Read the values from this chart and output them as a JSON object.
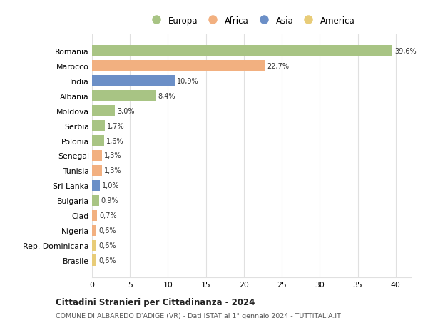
{
  "categories": [
    "Romania",
    "Marocco",
    "India",
    "Albania",
    "Moldova",
    "Serbia",
    "Polonia",
    "Senegal",
    "Tunisia",
    "Sri Lanka",
    "Bulgaria",
    "Ciad",
    "Nigeria",
    "Rep. Dominicana",
    "Brasile"
  ],
  "values": [
    39.6,
    22.7,
    10.9,
    8.4,
    3.0,
    1.7,
    1.6,
    1.3,
    1.3,
    1.0,
    0.9,
    0.7,
    0.6,
    0.6,
    0.6
  ],
  "labels": [
    "39,6%",
    "22,7%",
    "10,9%",
    "8,4%",
    "3,0%",
    "1,7%",
    "1,6%",
    "1,3%",
    "1,3%",
    "1,0%",
    "0,9%",
    "0,7%",
    "0,6%",
    "0,6%",
    "0,6%"
  ],
  "colors": [
    "#a8c484",
    "#f2b080",
    "#6b8fc7",
    "#a8c484",
    "#a8c484",
    "#a8c484",
    "#a8c484",
    "#f2b080",
    "#f2b080",
    "#6b8fc7",
    "#a8c484",
    "#f2b080",
    "#f2b080",
    "#e8cc78",
    "#e8cc78"
  ],
  "legend_labels": [
    "Europa",
    "Africa",
    "Asia",
    "America"
  ],
  "legend_colors": [
    "#a8c484",
    "#f2b080",
    "#6b8fc7",
    "#e8cc78"
  ],
  "title1": "Cittadini Stranieri per Cittadinanza - 2024",
  "title2": "COMUNE DI ALBAREDO D'ADIGE (VR) - Dati ISTAT al 1° gennaio 2024 - TUTTITALIA.IT",
  "xlim": [
    0,
    42
  ],
  "xticks": [
    0,
    5,
    10,
    15,
    20,
    25,
    30,
    35,
    40
  ],
  "background_color": "#ffffff",
  "grid_color": "#e0e0e0",
  "bar_height": 0.75
}
